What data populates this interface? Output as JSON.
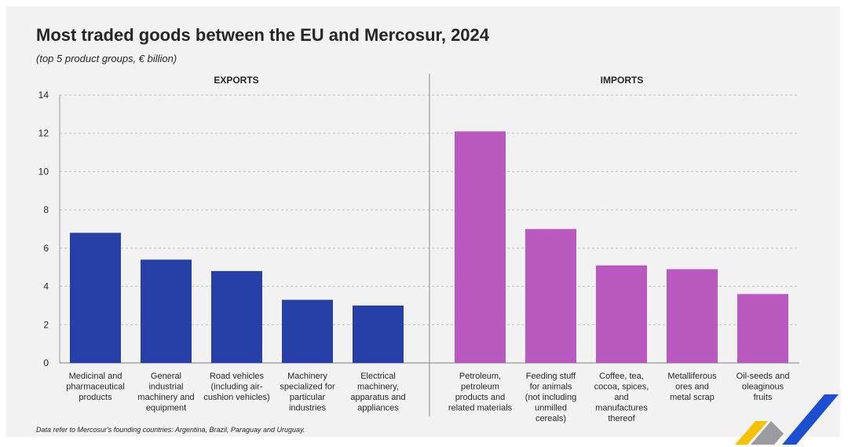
{
  "chart_data": {
    "type": "bar",
    "title": "Most traded goods between the EU and Mercosur, 2024",
    "subtitle": "(top 5 product groups, € billion)",
    "footnote": "Data refer to Mercosur's founding countries: Argentina, Brazil, Paraguay and Uruguay.",
    "ylim": [
      0,
      14
    ],
    "yticks": [
      0,
      2,
      4,
      6,
      8,
      10,
      12,
      14
    ],
    "grid": true,
    "panels": [
      {
        "name": "EXPORTS",
        "color": "#2640a8",
        "categories": [
          [
            "Medicinal and",
            "pharmaceutical",
            "products"
          ],
          [
            "General",
            "industrial",
            "machinery and",
            "equipment"
          ],
          [
            "Road vehicles",
            "(including air-",
            "cushion vehicles)"
          ],
          [
            "Machinery",
            "specialized for",
            "particular",
            "industries"
          ],
          [
            "Electrical",
            "machinery,",
            "apparatus and",
            "appliances"
          ]
        ],
        "values": [
          6.8,
          5.4,
          4.8,
          3.3,
          3.0
        ]
      },
      {
        "name": "IMPORTS",
        "color": "#b958bf",
        "categories": [
          [
            "Petroleum,",
            "petroleum",
            "products and",
            "related materials"
          ],
          [
            "Feeding stuff",
            "for animals",
            "(not including",
            "unmilled",
            "cereals)"
          ],
          [
            "Coffee, tea,",
            "cocoa, spices,",
            "and",
            "manufactures",
            "thereof"
          ],
          [
            "Metalliferous",
            "ores and",
            "metal scrap"
          ],
          [
            "Oil-seeds and",
            "oleaginous",
            "fruits"
          ]
        ],
        "values": [
          12.1,
          7.0,
          5.1,
          4.9,
          3.6
        ]
      }
    ]
  },
  "colors": {
    "background": "#f2f2f2",
    "text": "#262626",
    "grid": "#bfbfbf",
    "logo_yellow": "#f6c200",
    "logo_blue": "#1d4fd1",
    "logo_grey": "#9a9aa0"
  }
}
